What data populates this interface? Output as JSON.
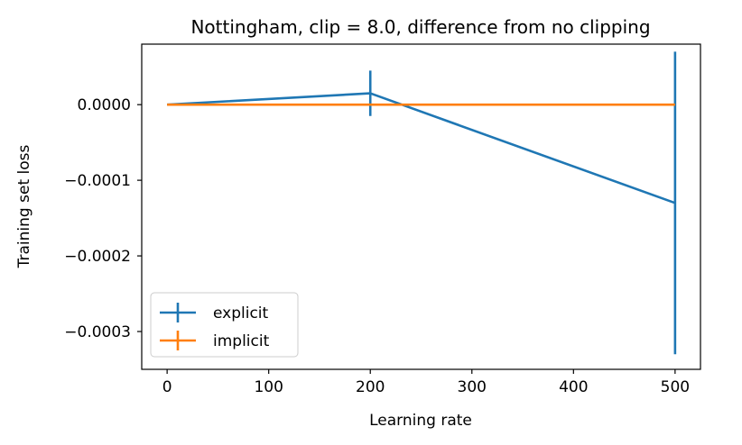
{
  "chart_data": {
    "type": "line",
    "title": "Nottingham, clip = 8.0, difference from no clipping",
    "xlabel": "Learning rate",
    "ylabel": "Training set loss",
    "xlim": [
      -25,
      525
    ],
    "ylim": [
      -0.00035,
      8e-05
    ],
    "xticks": [
      0,
      100,
      200,
      300,
      400,
      500
    ],
    "xtick_labels": [
      "0",
      "100",
      "200",
      "300",
      "400",
      "500"
    ],
    "yticks": [
      0.0,
      -0.0001,
      -0.0002,
      -0.0003
    ],
    "ytick_labels": [
      "0.0000",
      "−0.0001",
      "−0.0002",
      "−0.0003"
    ],
    "legend_position": "lower-left",
    "series": [
      {
        "name": "explicit",
        "color": "#1f77b4",
        "x": [
          0,
          200,
          500
        ],
        "y": [
          0.0,
          1.5e-05,
          -0.00013
        ],
        "yerr": [
          0.0,
          3e-05,
          0.0002
        ]
      },
      {
        "name": "implicit",
        "color": "#ff7f0e",
        "x": [
          0,
          200,
          500
        ],
        "y": [
          0.0,
          0.0,
          0.0
        ],
        "yerr": [
          0.0,
          0.0,
          0.0
        ]
      }
    ]
  }
}
